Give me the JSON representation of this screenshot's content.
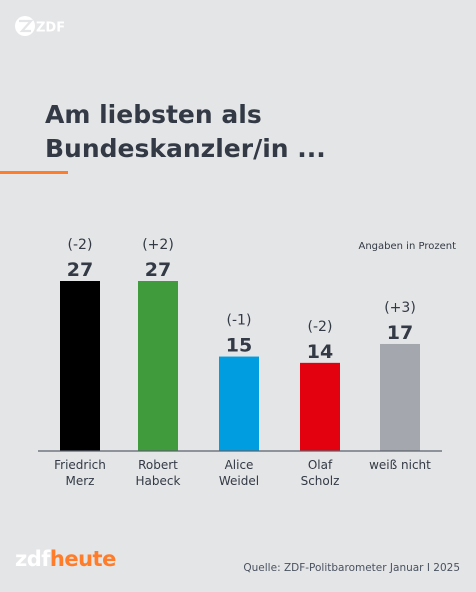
{
  "header": {
    "logo_text": "ZDF"
  },
  "title_lines": [
    "Am liebsten als",
    "Bundeskanzler/in ..."
  ],
  "unit_note": "Angaben in Prozent",
  "footer": {
    "brand_part1": "zdf",
    "brand_part2": "heute",
    "source": "Quelle: ZDF-Politbarometer Januar I 2025"
  },
  "colors": {
    "accent": "#ff7c2a",
    "background": "#e4e5e7"
  },
  "chart_data": {
    "type": "bar",
    "title": "Am liebsten als Bundeskanzler/in ...",
    "categories": [
      [
        "Friedrich",
        "Merz"
      ],
      [
        "Robert",
        "Habeck"
      ],
      [
        "Alice",
        "Weidel"
      ],
      [
        "Olaf",
        "Scholz"
      ],
      [
        "weiß nicht"
      ]
    ],
    "values": [
      27,
      27,
      15,
      14,
      17
    ],
    "changes": [
      "(-2)",
      "(+2)",
      "(-1)",
      "(-2)",
      "(+3)"
    ],
    "colors": [
      "#000000",
      "#3f9b3c",
      "#009ee0",
      "#e3000f",
      "#a4a7ad"
    ],
    "ylabel": "Angaben in Prozent",
    "ylim": [
      0,
      27
    ],
    "grid": false,
    "legend": "none"
  }
}
